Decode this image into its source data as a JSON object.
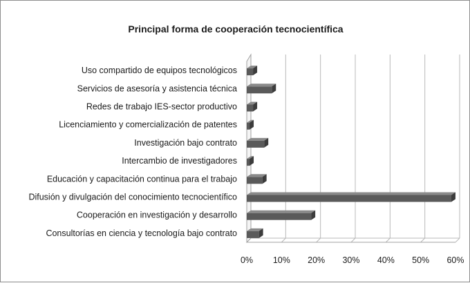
{
  "chart_data": {
    "type": "bar",
    "orientation": "horizontal",
    "title": "Principal forma de cooperación tecnocientífica",
    "xlabel": "",
    "ylabel": "",
    "categories": [
      "Uso compartido de equipos tecnológicos",
      "Servicios de asesoría y asistencia técnica",
      "Redes de trabajo IES-sector productivo",
      "Licenciamiento y comercialización de patentes",
      "Investigación bajo contrato",
      "Intercambio de investigadores",
      "Educación y capacitación continua para el trabajo",
      "Difusión y divulgación del conocimiento tecnocientífico",
      "Cooperación en investigación y desarrollo",
      "Consultorías en ciencia y tecnología bajo contrato"
    ],
    "values": [
      1.8,
      7.2,
      1.8,
      0.8,
      5.0,
      0.8,
      4.5,
      58.8,
      18.5,
      3.5
    ],
    "xlim": [
      0,
      60
    ],
    "ticks": [
      0,
      10,
      20,
      30,
      40,
      50,
      60
    ],
    "tick_labels": [
      "0%",
      "10%",
      "20%",
      "30%",
      "40%",
      "50%",
      "60%"
    ],
    "grid": true,
    "legend": "none",
    "bar_color": "#5a5a5a",
    "grid_color": "#b8b8b8"
  }
}
